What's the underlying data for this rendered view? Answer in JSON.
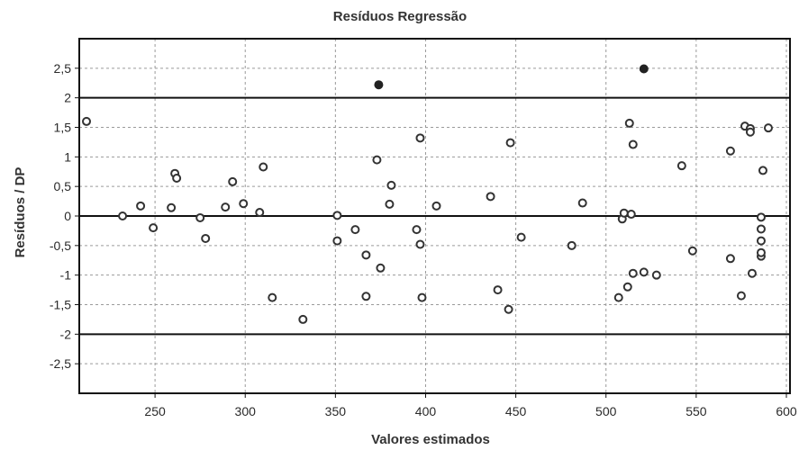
{
  "chart_data": {
    "type": "scatter",
    "title": "Resíduos Regressão",
    "xlabel": "Valores estimados",
    "ylabel": "Resíduos / DP",
    "xlim": [
      208,
      602
    ],
    "ylim": [
      -3.0,
      3.0
    ],
    "grid": true,
    "x_ticks": [
      250,
      300,
      350,
      400,
      450,
      500,
      550,
      600
    ],
    "x_tick_labels": [
      "250",
      "300",
      "350",
      "400",
      "450",
      "500",
      "550",
      "600"
    ],
    "y_ticks": [
      2.5,
      2,
      1.5,
      1,
      0.5,
      0,
      -0.5,
      -1,
      -1.5,
      -2,
      -2.5
    ],
    "y_tick_labels": [
      "2,5",
      "2",
      "1,5",
      "1",
      "0,5",
      "0",
      "-0,5",
      "-1",
      "-1,5",
      "-2",
      "-2,5"
    ],
    "reference_lines": [
      2,
      0,
      -2
    ],
    "colors": {
      "frame": "#111111",
      "grid": "#9a9a9a",
      "marker": "#333333",
      "filled_marker": "#222222"
    },
    "series": [
      {
        "marker": "hollow-circle",
        "points": [
          [
            212,
            1.6
          ],
          [
            232,
            0.0
          ],
          [
            242,
            0.17
          ],
          [
            249,
            -0.2
          ],
          [
            259,
            0.14
          ],
          [
            261,
            0.72
          ],
          [
            262,
            0.64
          ],
          [
            275,
            -0.03
          ],
          [
            278,
            -0.38
          ],
          [
            289,
            0.15
          ],
          [
            293,
            0.58
          ],
          [
            299,
            0.21
          ],
          [
            308,
            0.06
          ],
          [
            310,
            0.83
          ],
          [
            315,
            -1.38
          ],
          [
            332,
            -1.75
          ],
          [
            351,
            0.01
          ],
          [
            351,
            -0.42
          ],
          [
            361,
            -0.23
          ],
          [
            367,
            -0.66
          ],
          [
            367,
            -1.36
          ],
          [
            373,
            0.95
          ],
          [
            375,
            -0.88
          ],
          [
            380,
            0.2
          ],
          [
            381,
            0.52
          ],
          [
            395,
            -0.23
          ],
          [
            397,
            -0.48
          ],
          [
            397,
            1.32
          ],
          [
            398,
            -1.38
          ],
          [
            406,
            0.17
          ],
          [
            436,
            0.33
          ],
          [
            440,
            -1.25
          ],
          [
            446,
            -1.58
          ],
          [
            447,
            1.24
          ],
          [
            453,
            -0.36
          ],
          [
            481,
            -0.5
          ],
          [
            487,
            0.22
          ],
          [
            507,
            -1.38
          ],
          [
            509,
            -0.05
          ],
          [
            510,
            0.05
          ],
          [
            512,
            -1.2
          ],
          [
            513,
            1.57
          ],
          [
            514,
            0.03
          ],
          [
            515,
            -0.97
          ],
          [
            515,
            1.21
          ],
          [
            521,
            -0.95
          ],
          [
            528,
            -1.0
          ],
          [
            542,
            0.85
          ],
          [
            548,
            -0.59
          ],
          [
            569,
            1.1
          ],
          [
            569,
            -0.72
          ],
          [
            575,
            -1.35
          ],
          [
            577,
            1.52
          ],
          [
            580,
            1.48
          ],
          [
            580,
            1.42
          ],
          [
            581,
            -0.97
          ],
          [
            586,
            -0.68
          ],
          [
            586,
            -0.42
          ],
          [
            586,
            -0.62
          ],
          [
            586,
            -0.02
          ],
          [
            586,
            -0.22
          ],
          [
            587,
            0.77
          ],
          [
            590,
            1.49
          ]
        ]
      },
      {
        "marker": "filled-circle",
        "points": [
          [
            374,
            2.22
          ],
          [
            521,
            2.49
          ]
        ]
      }
    ]
  }
}
